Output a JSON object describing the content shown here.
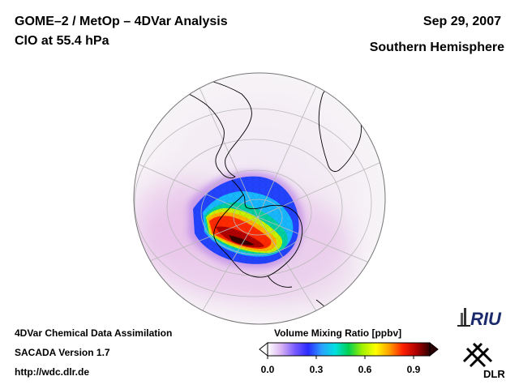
{
  "header": {
    "title": "GOME–2 / MetOp – 4DVar Analysis",
    "species": "ClO at 55.4 hPa",
    "date": "Sep 29, 2007",
    "region": "Southern Hemisphere"
  },
  "footer": {
    "line1": "4DVar Chemical Data Assimilation",
    "line2": "SACADA Version 1.7",
    "url": "http://wdc.dlr.de"
  },
  "colorbar": {
    "title": "Volume Mixing Ratio [ppbv]",
    "ticks": [
      "0.0",
      "0.3",
      "0.6",
      "0.9"
    ],
    "range": [
      0.0,
      1.0
    ],
    "colors": [
      "#ffffff",
      "#d9b3f2",
      "#7a5cff",
      "#2a2aff",
      "#2aa0ff",
      "#00e0e0",
      "#00d050",
      "#a0f000",
      "#ffff00",
      "#ffa000",
      "#ff2000",
      "#b00000",
      "#300000"
    ]
  },
  "logos": {
    "riu": "RIU",
    "dlr": "DLR"
  }
}
